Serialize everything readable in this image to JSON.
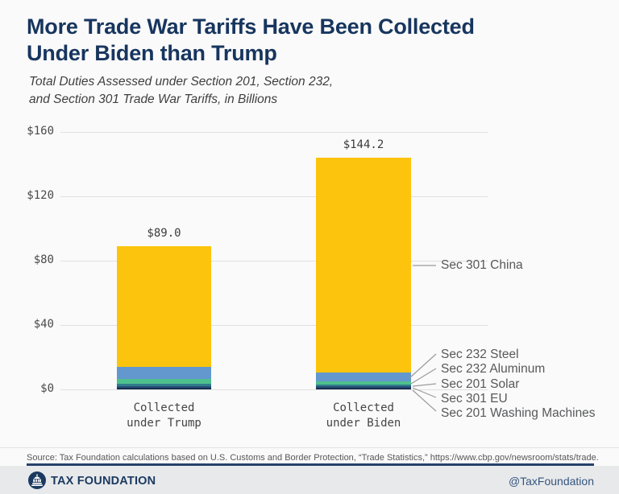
{
  "chart_data": {
    "type": "bar",
    "stacked": true,
    "stack_order": "bottom-to-top",
    "title_line1": "More Trade War Tariffs Have Been Collected",
    "title_line2": "Under Biden than Trump",
    "subtitle_line1": "Total Duties Assessed under Section 201, Section 232,",
    "subtitle_line2": "and Section 301 Trade War Tariffs, in Billions",
    "unit": "$ billions",
    "categories": [
      [
        "Collected",
        "under Trump"
      ],
      [
        "Collected",
        "under Biden"
      ]
    ],
    "series": [
      {
        "name": "Sec 201 Washing Machines",
        "color": "#16304F",
        "values": [
          1.0,
          0.9
        ]
      },
      {
        "name": "Sec 301 EU",
        "color": "#2A4E77",
        "values": [
          1.2,
          1.0
        ]
      },
      {
        "name": "Sec 201 Solar",
        "color": "#2F7D8C",
        "values": [
          1.1,
          1.0
        ]
      },
      {
        "name": "Sec 232 Aluminum",
        "color": "#4EC08D",
        "values": [
          3.2,
          2.3
        ]
      },
      {
        "name": "Sec 232 Steel",
        "color": "#6298CE",
        "values": [
          7.5,
          5.5
        ]
      },
      {
        "name": "Sec 301 China",
        "color": "#FDC40D",
        "values": [
          75.0,
          133.5
        ]
      }
    ],
    "totals": [
      89.0,
      144.2
    ],
    "total_labels": [
      "$89.0",
      "$144.2"
    ],
    "ylim": [
      0,
      160
    ],
    "yticks": [
      {
        "value": 0,
        "label": "$0"
      },
      {
        "value": 40,
        "label": "$40"
      },
      {
        "value": 80,
        "label": "$80"
      },
      {
        "value": 120,
        "label": "$120"
      },
      {
        "value": 160,
        "label": "$160"
      }
    ],
    "grid": true,
    "legend": "callout-annotations-right"
  },
  "source": {
    "text": "Source: Tax Foundation calculations based on U.S. Customs and Border Protection, “Trade Statistics,” https://www.cbp.gov/newsroom/stats/trade."
  },
  "footer": {
    "brand": "TAX FOUNDATION",
    "handle": "@TaxFoundation"
  },
  "colors": {
    "background": "#FAFAFA",
    "title_navy": "#17355E",
    "bar_yellow": "#FDC40D",
    "bar_blue": "#6298CE",
    "bar_green": "#4EC08D",
    "bar_teal": "#2F7D8C",
    "bar_dark_blue": "#2A4E77",
    "bar_navy": "#16304F",
    "gridline": "#E0E0E0",
    "footer_band": "#E8E9EB",
    "footer_rule": "#27426B"
  }
}
